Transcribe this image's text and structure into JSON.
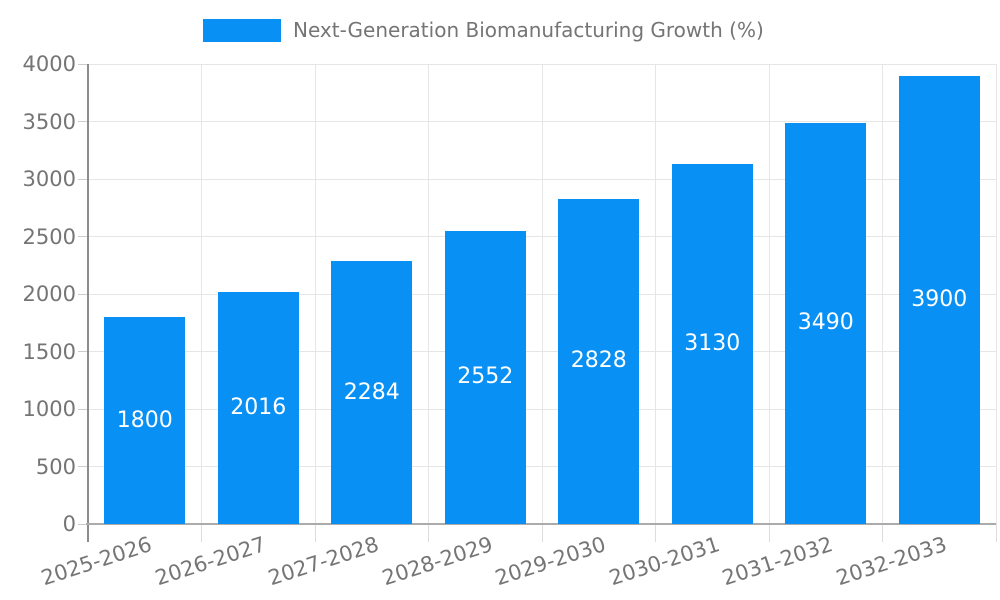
{
  "legend": {
    "label": "Next-Generation Biomanufacturing Growth (%)"
  },
  "chart_data": {
    "type": "bar",
    "title": "Next-Generation Biomanufacturing Growth (%)",
    "categories": [
      "2025-2026",
      "2026-2027",
      "2027-2028",
      "2028-2029",
      "2029-2030",
      "2030-2031",
      "2031-2032",
      "2032-2033"
    ],
    "values": [
      1800,
      2016,
      2284,
      2552,
      2828,
      3130,
      3490,
      3900
    ],
    "value_labels": [
      "1800",
      "2016",
      "2284",
      "2552",
      "2828",
      "3130",
      "3490",
      "3900"
    ],
    "xlabel": "",
    "ylabel": "",
    "ylim": [
      0,
      4000
    ],
    "yticks": [
      0,
      500,
      1000,
      1500,
      2000,
      2500,
      3000,
      3500,
      4000
    ],
    "grid": true,
    "legend_position": "top",
    "xtick_rotation_deg": -18
  },
  "colors": {
    "bar": "#0890f5",
    "bar_value_text": "#ffffff",
    "tick_label": "#757575",
    "legend_text": "#757575",
    "gridline": "#e6e6e6",
    "y_axis_line": "#8c8c8c",
    "x_axis_line": "#ababab",
    "y_tick": "#cccccc",
    "x_tick": "#dcdcdc",
    "background": "#ffffff"
  }
}
